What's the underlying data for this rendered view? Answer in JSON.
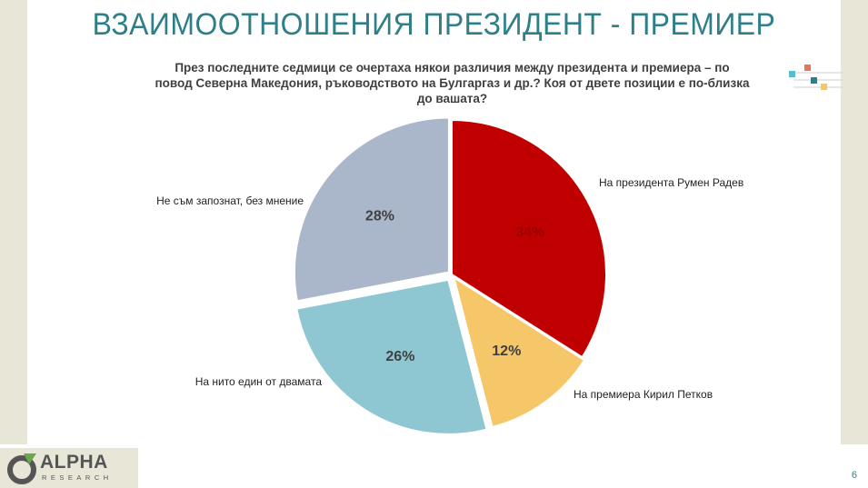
{
  "title": "ВЗАИМООТНОШЕНИЯ ПРЕЗИДЕНТ - ПРЕМИЕР",
  "question": "През последните седмици се очертаха някои различия между президента и премиера – по повод Северна Македония, ръководството на Булгаргаз и др.? Коя от двете позиции е по-близка до вашата?",
  "chart_data": {
    "type": "pie",
    "slices": [
      {
        "label": "На президента Румен Радев",
        "value": 34,
        "value_label": "34%",
        "color": "#c00000"
      },
      {
        "label": "На премиера Кирил Петков",
        "value": 12,
        "value_label": "12%",
        "color": "#f6c768"
      },
      {
        "label": "На нито един от двамата",
        "value": 26,
        "value_label": "26%",
        "color": "#8ec6d2"
      },
      {
        "label": "Не съм запознат, без мнение",
        "value": 28,
        "value_label": "28%",
        "color": "#aab6c9"
      }
    ]
  },
  "logo": {
    "name": "ALPHA",
    "sub": "RESEARCH"
  },
  "page_number": "6",
  "deco_colors": [
    "#e8735a",
    "#5bbccc",
    "#2f7f88",
    "#f6c768"
  ]
}
